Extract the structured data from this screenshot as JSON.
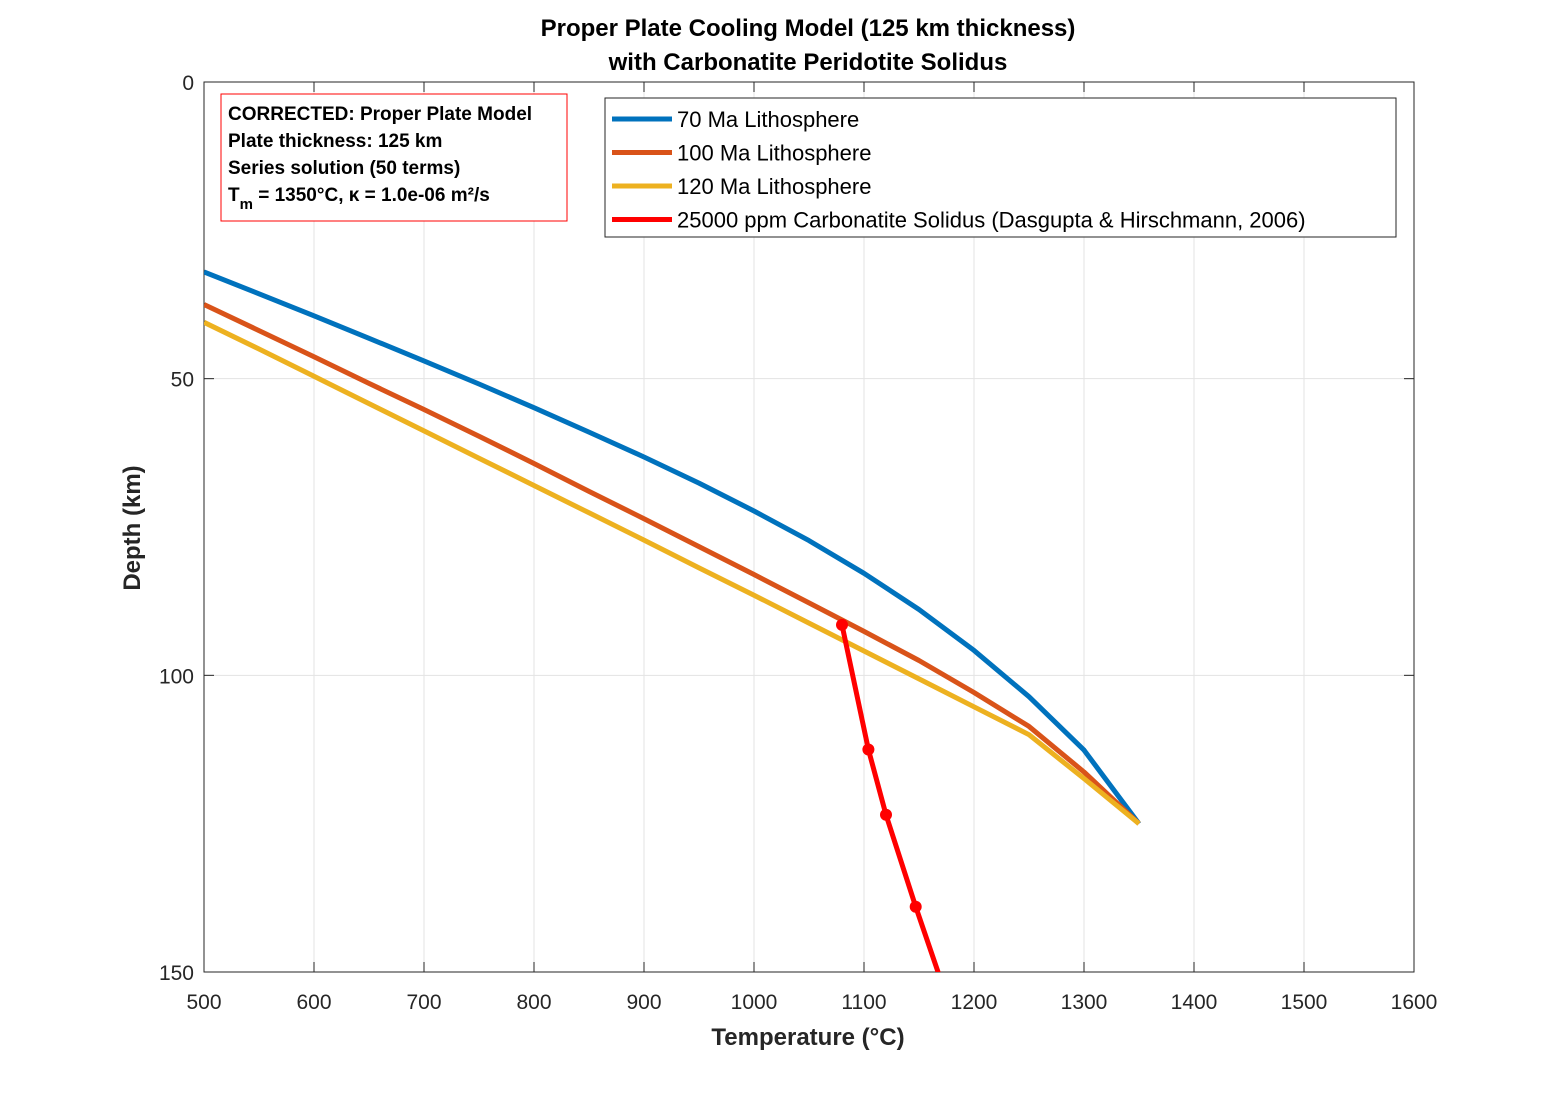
{
  "chart_data": {
    "type": "line",
    "title": [
      "Proper Plate Cooling Model (125 km thickness)",
      "with Carbonatite Peridotite Solidus"
    ],
    "xlabel": "Temperature (°C)",
    "ylabel": "Depth (km)",
    "xlim": [
      500,
      1600
    ],
    "ylim": [
      0,
      150
    ],
    "y_reversed": true,
    "grid": true,
    "legend_position": "top-right",
    "xticks": [
      "500",
      "600",
      "700",
      "800",
      "900",
      "1000",
      "1100",
      "1200",
      "1300",
      "1400",
      "1500",
      "1600"
    ],
    "yticks": [
      "0",
      "50",
      "100",
      "150"
    ],
    "series": [
      {
        "name": "70 Ma Lithosphere",
        "color": "#0072BD",
        "x": [
          500,
          550,
          600,
          650,
          700,
          750,
          800,
          850,
          900,
          950,
          1000,
          1050,
          1100,
          1150,
          1200,
          1250,
          1300,
          1350
        ],
        "y": [
          32,
          35.7,
          39.4,
          43.2,
          47.0,
          50.9,
          54.9,
          59.0,
          63.2,
          67.6,
          72.3,
          77.3,
          82.8,
          88.9,
          95.8,
          103.6,
          112.6,
          125
        ]
      },
      {
        "name": "100 Ma Lithosphere",
        "color": "#D95319",
        "x": [
          500,
          550,
          600,
          650,
          700,
          750,
          800,
          850,
          900,
          950,
          1000,
          1050,
          1100,
          1150,
          1200,
          1250,
          1300,
          1350
        ],
        "y": [
          37.5,
          41.9,
          46.3,
          50.8,
          55.2,
          59.7,
          64.3,
          69.0,
          73.6,
          78.3,
          83.0,
          87.8,
          92.6,
          97.5,
          102.9,
          108.6,
          116.3,
          125
        ]
      },
      {
        "name": "120 Ma Lithosphere",
        "color": "#EDB120",
        "x": [
          500,
          550,
          600,
          650,
          700,
          750,
          800,
          850,
          900,
          950,
          1000,
          1050,
          1100,
          1150,
          1200,
          1250,
          1300,
          1350
        ],
        "y": [
          40.5,
          45.0,
          49.6,
          54.2,
          58.8,
          63.4,
          68.0,
          72.6,
          77.2,
          81.9,
          86.5,
          91.2,
          95.9,
          100.6,
          105.3,
          110.0,
          117.4,
          125
        ]
      },
      {
        "name": "25000 ppm Carbonatite Solidus (Dasgupta & Hirschmann, 2006)",
        "color": "#FF0000",
        "markers": true,
        "x": [
          1080,
          1104,
          1120,
          1147,
          1171
        ],
        "y": [
          91.5,
          112.5,
          123.5,
          139,
          152
        ]
      }
    ]
  },
  "annotation": {
    "lines": [
      "CORRECTED: Proper Plate Model",
      "Plate thickness: 125 km",
      "Series solution (50 terms)"
    ],
    "tm_symbol": "T",
    "tm_subscript": "m",
    "tm_rest": " = 1350°C, κ = 1.0e-06 m²/s",
    "border_color": "#FF0000"
  }
}
